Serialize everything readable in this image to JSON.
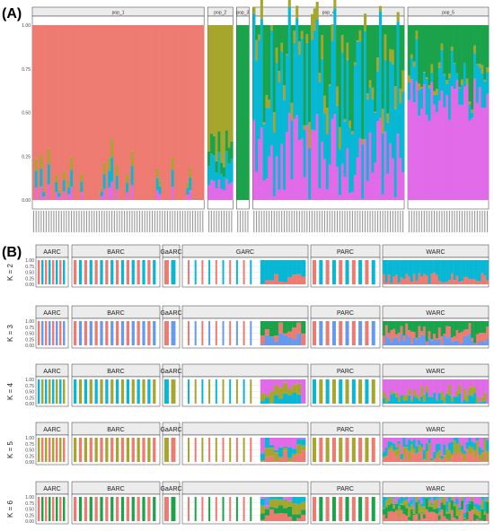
{
  "panel_labels": {
    "a": "(A)",
    "b": "(B)"
  },
  "colors": {
    "red": "#EE7B72",
    "olive": "#A6A62C",
    "green": "#1AA34A",
    "cyan": "#08B7D3",
    "blue": "#649BF0",
    "magenta": "#E06AE8",
    "strip_bg": "#ECECEC",
    "frame": "#333333",
    "grid": "#DDDDDD"
  },
  "chart_data": [
    {
      "type": "bar",
      "subtype": "stacked-100-admixture",
      "panel": "A",
      "ylim": [
        0,
        1
      ],
      "y_ticks": [
        "0.00",
        "0.25",
        "0.50",
        "0.75",
        "1.00"
      ],
      "facets": [
        {
          "label": "pop_1",
          "n": 68,
          "profile": "red-dominant"
        },
        {
          "label": "pop_2",
          "n": 10,
          "profile": "olive-dominant"
        },
        {
          "label": "pop_3",
          "n": 5,
          "profile": "green"
        },
        {
          "label": "pop_4",
          "n": 60,
          "profile": "mixed-cyan-magenta"
        },
        {
          "label": "pop_5",
          "n": 32,
          "profile": "magenta-dominant"
        }
      ]
    },
    {
      "type": "bar",
      "subtype": "stacked-100-admixture-grid",
      "panel": "B",
      "ylim": [
        0,
        1
      ],
      "y_ticks": [
        "0.00",
        "0.25",
        "0.50",
        "0.75",
        "1.00"
      ],
      "rows": [
        "K = 2",
        "K = 3",
        "K = 4",
        "K = 5",
        "K = 6"
      ],
      "columns": [
        {
          "label": "AARC",
          "labeled_rows": [
            0,
            1,
            2,
            3,
            4
          ]
        },
        {
          "label": "BARC",
          "labeled_rows": [
            0,
            1,
            2,
            3,
            4
          ]
        },
        {
          "label": "GaARC",
          "labeled_rows": [
            0,
            1,
            2,
            3,
            4
          ]
        },
        {
          "label": "GARC",
          "labeled_rows": [
            0
          ]
        },
        {
          "label": "PARC",
          "labeled_rows": [
            0,
            1,
            2,
            3,
            4
          ]
        },
        {
          "label": "WARC",
          "labeled_rows": [
            0,
            1,
            2,
            3,
            4
          ]
        }
      ]
    }
  ]
}
